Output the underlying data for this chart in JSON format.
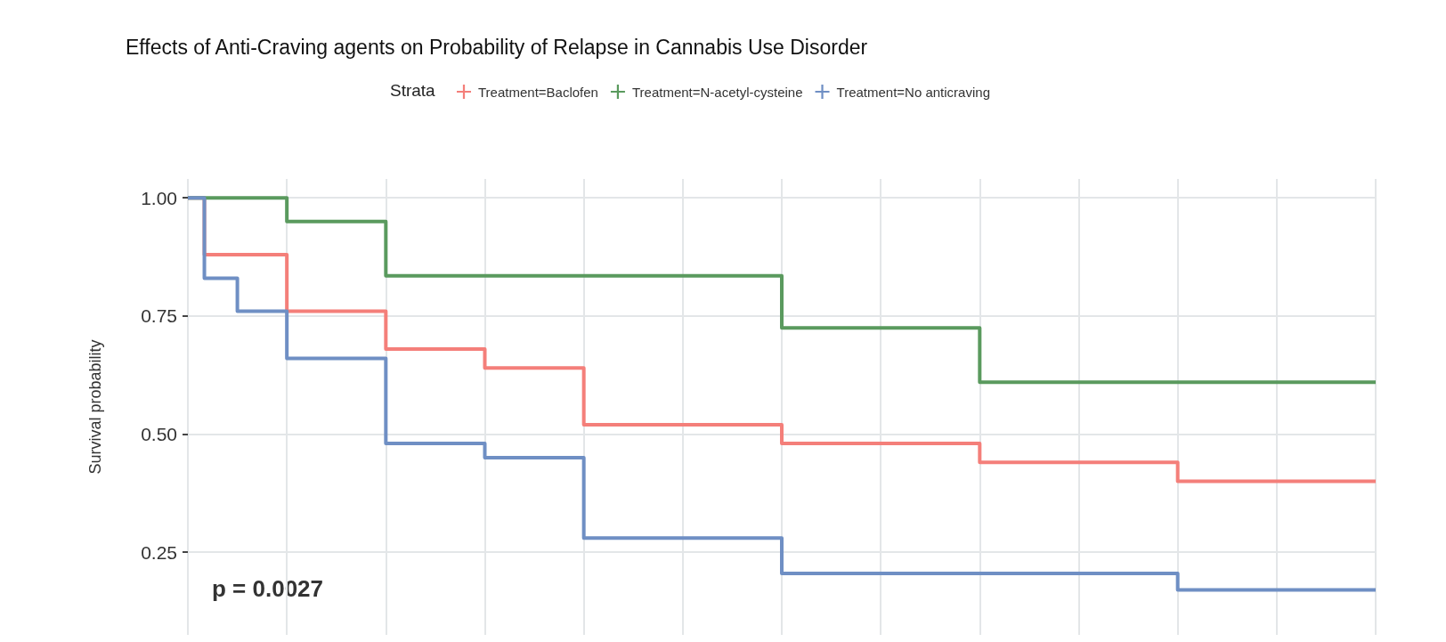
{
  "chart_data": {
    "type": "step",
    "title": "Effects of Anti-Craving agents on Probability of Relapse in Cannabis Use Disorder",
    "ylabel": "Survival probability",
    "legend_title": "Strata",
    "legend": "top",
    "grid": true,
    "tick_labels": "y",
    "annotations": [
      "p = 0.0027"
    ],
    "categories": [
      null,
      null,
      null,
      null,
      null,
      null,
      null,
      null,
      null,
      null,
      null,
      null,
      null,
      null,
      null,
      null,
      null,
      null,
      null,
      null,
      null,
      null,
      null,
      null,
      null,
      null,
      null,
      null,
      null,
      null,
      null,
      null,
      null,
      null,
      null,
      null,
      null,
      null,
      null,
      null,
      null,
      null,
      null,
      null,
      null,
      null,
      null,
      null,
      null,
      null,
      null,
      null,
      null,
      null,
      null,
      null,
      null,
      null,
      null,
      null,
      null,
      null,
      null,
      null,
      null,
      null,
      null,
      null,
      null,
      null,
      null,
      null,
      null
    ],
    "ylim": [
      0.075,
      1.04
    ],
    "yticks": [
      {
        "value": 0.25,
        "label": "0.25"
      },
      {
        "value": 0.5,
        "label": "0.50"
      },
      {
        "value": 0.75,
        "label": "0.75"
      },
      {
        "value": 1,
        "label": "1.00"
      }
    ],
    "series": [
      {
        "name": "Treatment=Baclofen",
        "color": "#f47f7a",
        "values": [
          1.0,
          0.88,
          0.88,
          0.88,
          0.88,
          0.88,
          0.76,
          0.76,
          0.76,
          0.76,
          0.76,
          0.76,
          0.68,
          0.68,
          0.68,
          0.68,
          0.68,
          0.68,
          0.64,
          0.64,
          0.64,
          0.64,
          0.64,
          0.64,
          0.52,
          0.52,
          0.52,
          0.52,
          0.52,
          0.52,
          0.52,
          0.52,
          0.52,
          0.52,
          0.52,
          0.52,
          0.48,
          0.48,
          0.48,
          0.48,
          0.48,
          0.48,
          0.48,
          0.48,
          0.48,
          0.48,
          0.48,
          0.48,
          0.44,
          0.44,
          0.44,
          0.44,
          0.44,
          0.44,
          0.44,
          0.44,
          0.44,
          0.44,
          0.44,
          0.44,
          0.4,
          0.4,
          0.4,
          0.4,
          0.4,
          0.4,
          0.4,
          0.4,
          0.4,
          0.4,
          0.4,
          0.4,
          0.4
        ]
      },
      {
        "name": "Treatment=N-acetyl-cysteine",
        "color": "#5a9a5e",
        "values": [
          1.0,
          1.0,
          1.0,
          1.0,
          1.0,
          1.0,
          0.95,
          0.95,
          0.95,
          0.95,
          0.95,
          0.95,
          0.835,
          0.835,
          0.835,
          0.835,
          0.835,
          0.835,
          0.835,
          0.835,
          0.835,
          0.835,
          0.835,
          0.835,
          0.835,
          0.835,
          0.835,
          0.835,
          0.835,
          0.835,
          0.835,
          0.835,
          0.835,
          0.835,
          0.835,
          0.835,
          0.725,
          0.725,
          0.725,
          0.725,
          0.725,
          0.725,
          0.725,
          0.725,
          0.725,
          0.725,
          0.725,
          0.725,
          0.61,
          0.61,
          0.61,
          0.61,
          0.61,
          0.61,
          0.61,
          0.61,
          0.61,
          0.61,
          0.61,
          0.61,
          0.61,
          0.61,
          0.61,
          0.61,
          0.61,
          0.61,
          0.61,
          0.61,
          0.61,
          0.61,
          0.61,
          0.61,
          0.61
        ]
      },
      {
        "name": "Treatment=No anticraving",
        "color": "#6f8fc4",
        "values": [
          1.0,
          0.83,
          0.83,
          0.76,
          0.76,
          0.76,
          0.66,
          0.66,
          0.66,
          0.66,
          0.66,
          0.66,
          0.48,
          0.48,
          0.48,
          0.48,
          0.48,
          0.48,
          0.45,
          0.45,
          0.45,
          0.45,
          0.45,
          0.45,
          0.28,
          0.28,
          0.28,
          0.28,
          0.28,
          0.28,
          0.28,
          0.28,
          0.28,
          0.28,
          0.28,
          0.28,
          0.205,
          0.205,
          0.205,
          0.205,
          0.205,
          0.205,
          0.205,
          0.205,
          0.205,
          0.205,
          0.205,
          0.205,
          0.205,
          0.205,
          0.205,
          0.205,
          0.205,
          0.205,
          0.205,
          0.205,
          0.205,
          0.205,
          0.205,
          0.205,
          0.17,
          0.17,
          0.17,
          0.17,
          0.17,
          0.17,
          0.17,
          0.17,
          0.17,
          0.17,
          0.17,
          0.17,
          0.17
        ]
      }
    ]
  }
}
